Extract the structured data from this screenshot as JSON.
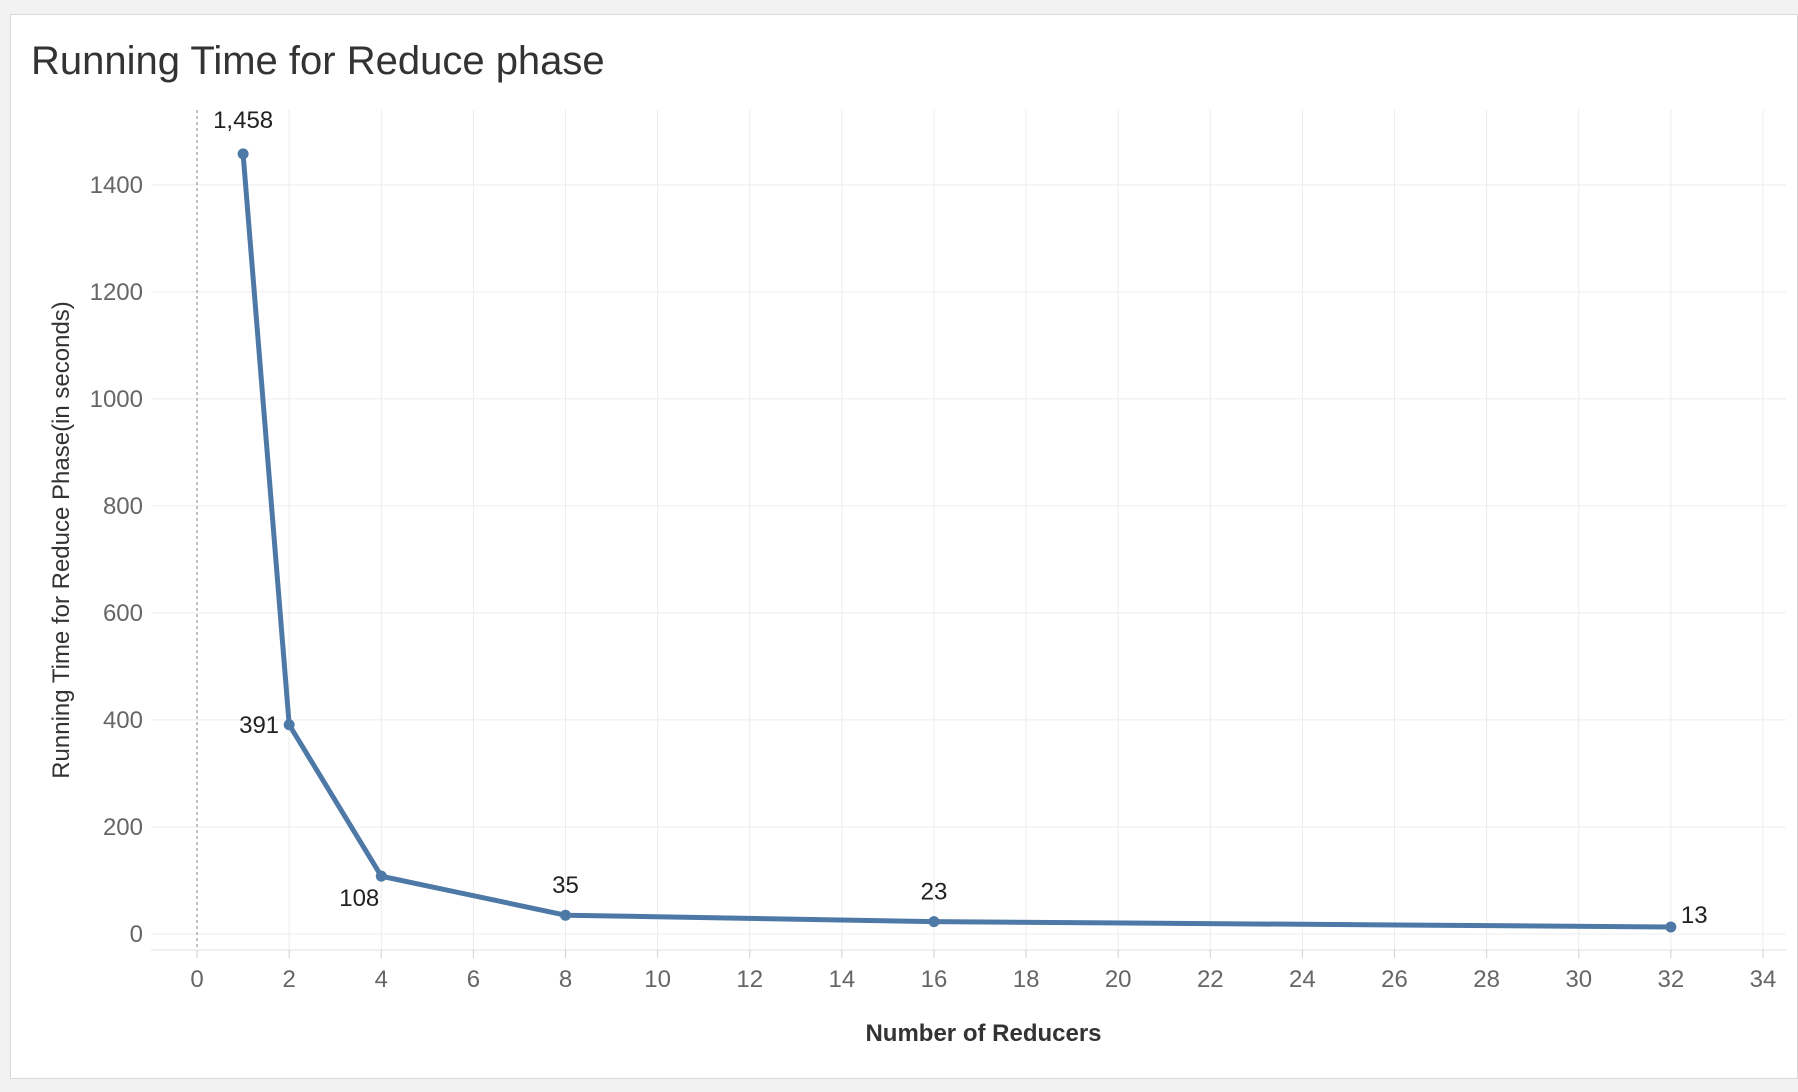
{
  "chart_data": {
    "type": "line",
    "title": "Running Time for Reduce phase",
    "xlabel": "Number of Reducers",
    "ylabel": "Running Time for Reduce Phase(in seconds)",
    "x": [
      1,
      2,
      4,
      8,
      16,
      32
    ],
    "series": [
      {
        "values": [
          1458,
          391,
          108,
          35,
          23,
          13
        ],
        "labels": [
          "1,458",
          "391",
          "108",
          "35",
          "23",
          "13"
        ]
      }
    ],
    "xticks": [
      "0",
      "2",
      "4",
      "6",
      "8",
      "10",
      "12",
      "14",
      "16",
      "18",
      "20",
      "22",
      "24",
      "26",
      "28",
      "30",
      "32",
      "34"
    ],
    "yticks": [
      "0",
      "200",
      "400",
      "600",
      "800",
      "1000",
      "1200",
      "1400"
    ],
    "xlim": [
      -1,
      34.5
    ],
    "ylim": [
      -30,
      1540
    ],
    "grid": true,
    "colors": {
      "line": "#4e79a7",
      "grid": "#ececec",
      "tick_text": "#666666",
      "label_text": "#222222"
    }
  }
}
